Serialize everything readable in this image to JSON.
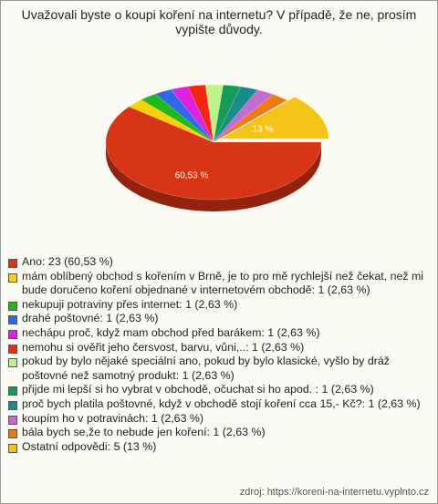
{
  "chart_data": {
    "type": "pie",
    "title": "Uvažovali byste o koupi koření na internetu? V případě, že ne, prosím vypište důvody.",
    "categories": [
      "Ano: 23 (60,53 %)",
      "mám oblíbený obchod s kořením v Brně, je to pro mě rychlejší než čekat, než mi bude doručeno koření objednané v internetovém obchodě: 1 (2,63 %)",
      "nekupuji potraviny přes internet: 1 (2,63 %)",
      "drahé poštovné: 1 (2,63 %)",
      "nechápu proč, když mam obchod před barákem: 1 (2,63 %)",
      "nemohu si ověřit jeho čersvost, barvu, vůni,..: 1 (2,63 %)",
      "pokud by bylo nějaké speciální ano, pokud by bylo klasické, vyšlo by dráž poštovné než samotný produkt: 1 (2,63 %)",
      "přijde mi lepší si ho vybrat v obchodě, očuchat si ho apod. : 1 (2,63 %)",
      "proč bych platila poštovné, když v obchodě stojí koření cca 15,- Kč?: 1 (2,63 %)",
      "koupím ho v potravinách: 1 (2,63 %)",
      "bála bych se,že to nebude jen koření: 1 (2,63 %)",
      "Ostatní odpovědi: 5 (13 %)"
    ],
    "values": [
      60.53,
      2.63,
      2.63,
      2.63,
      2.63,
      2.63,
      2.63,
      2.63,
      2.63,
      2.63,
      2.63,
      13
    ],
    "value_labels": [
      "60,53 %",
      null,
      null,
      null,
      null,
      null,
      null,
      null,
      null,
      null,
      null,
      "13 %"
    ],
    "colors": [
      "#d83416",
      "#f5d20c",
      "#1fb81f",
      "#3366e8",
      "#e020dc",
      "#f0280f",
      "#b9f58c",
      "#139c58",
      "#1a8b8b",
      "#c66ad4",
      "#f07a12",
      "#f2c418"
    ],
    "source": "zdroj: https://koreni-na-internetu.vyplnto.cz"
  }
}
